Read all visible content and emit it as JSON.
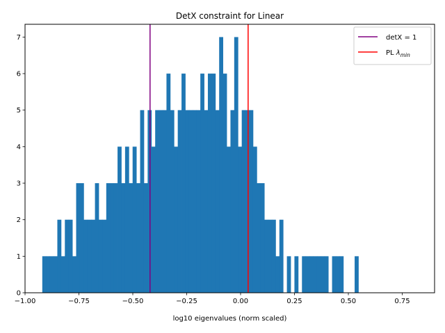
{
  "chart_data": {
    "type": "bar",
    "title": "DetX constraint for Linear",
    "xlabel": "log10 eigenvalues (norm scaled)",
    "ylabel": "",
    "xlim": [
      -1.0,
      0.9
    ],
    "ylim": [
      0,
      7.35
    ],
    "xticks": [
      -1.0,
      -0.75,
      -0.5,
      -0.25,
      0.0,
      0.25,
      0.5,
      0.75
    ],
    "xtick_labels": [
      "−1.00",
      "−0.75",
      "−0.50",
      "−0.25",
      "0.00",
      "0.25",
      "0.50",
      "0.75"
    ],
    "yticks": [
      0,
      1,
      2,
      3,
      4,
      5,
      6,
      7
    ],
    "ytick_labels": [
      "0",
      "1",
      "2",
      "3",
      "4",
      "5",
      "6",
      "7"
    ],
    "bar_color": "#1f77b4",
    "bins": {
      "start": -0.92,
      "width": 0.01746,
      "counts": [
        1,
        1,
        1,
        1,
        2,
        1,
        2,
        2,
        1,
        3,
        3,
        2,
        2,
        2,
        3,
        2,
        2,
        3,
        3,
        3,
        4,
        3,
        4,
        3,
        4,
        3,
        5,
        3,
        5,
        4,
        5,
        5,
        5,
        6,
        5,
        4,
        5,
        6,
        5,
        5,
        5,
        5,
        6,
        5,
        6,
        6,
        5,
        7,
        6,
        4,
        5,
        7,
        4,
        5,
        5,
        5,
        4,
        3,
        3,
        2,
        2,
        2,
        1,
        2,
        0,
        1,
        0,
        1,
        0,
        1,
        1,
        1,
        1,
        1,
        1,
        1,
        0,
        1,
        1,
        1,
        0,
        0,
        0,
        1
      ]
    },
    "vlines": [
      {
        "name": "detX = 1",
        "x": -0.42,
        "color": "#800080"
      },
      {
        "name": "PL λmin",
        "x": 0.035,
        "color": "#ff0000"
      }
    ],
    "legend": {
      "placement": "top-right",
      "entries": [
        {
          "prefix": "detX",
          "mid": " = ",
          "suffix": "1",
          "sub": "",
          "color": "#800080"
        },
        {
          "prefix": "PL ",
          "mid": "λ",
          "suffix": "",
          "sub": "min",
          "color": "#ff0000"
        }
      ]
    },
    "grid": false
  }
}
